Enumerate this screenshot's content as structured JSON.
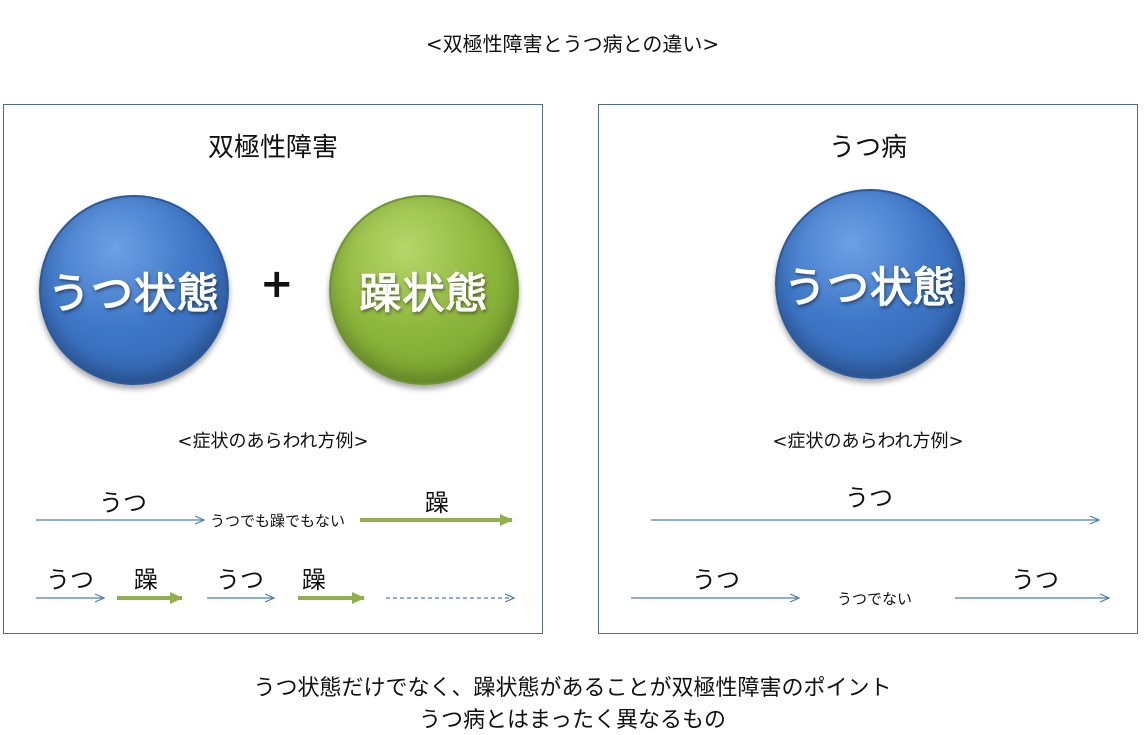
{
  "title": "<双極性障害とうつ病との違い>",
  "left": {
    "heading": "双極性障害",
    "circle_depression": "うつ状態",
    "plus": "+",
    "circle_mania": "躁状態",
    "subhead": "<症状のあらわれ方例>",
    "row1": {
      "label_utsu": "うつ",
      "middle": "うつでも躁でもない",
      "label_sou": "躁"
    },
    "row2": {
      "labels": [
        "うつ",
        "躁",
        "うつ",
        "躁"
      ]
    }
  },
  "right": {
    "heading": "うつ病",
    "circle_depression": "うつ状態",
    "subhead": "<症状のあらわれ方例>",
    "row1": {
      "label": "うつ"
    },
    "row2": {
      "label_left": "うつ",
      "middle": "うつでない",
      "label_right": "うつ"
    }
  },
  "footer": {
    "line1": "うつ状態だけでなく、躁状態があることが双極性障害のポイント",
    "line2": "うつ病とはまったく異なるもの"
  },
  "colors": {
    "blue_arrow": "#4a7fb5",
    "green_arrow": "#8fb04c",
    "panel_border": "#4f6d8a"
  }
}
